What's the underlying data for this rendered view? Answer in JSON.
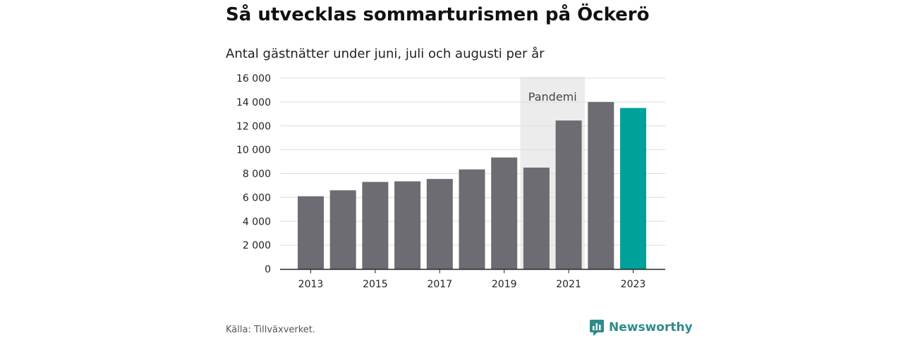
{
  "title": "Så utvecklas sommarturismen på Öckerö",
  "subtitle": "Antal gästnätter under juni, juli och augusti per år",
  "source": "Källa: Tillväxverket.",
  "brand": {
    "name": "Newsworthy",
    "icon": "newsworthy-logo-icon",
    "color": "#2e8b8b"
  },
  "colors": {
    "bar": "#6d6c73",
    "highlight": "#00a19a",
    "annotation_band": "#ececec"
  },
  "chart_data": {
    "type": "bar",
    "categories": [
      "2013",
      "2014",
      "2015",
      "2016",
      "2017",
      "2018",
      "2019",
      "2020",
      "2021",
      "2022",
      "2023"
    ],
    "values": [
      6100,
      6600,
      7300,
      7350,
      7550,
      8350,
      9350,
      8500,
      12450,
      14000,
      13500
    ],
    "highlight_category": "2023",
    "x_tick_labels": [
      "2013",
      "2015",
      "2017",
      "2019",
      "2021",
      "2023"
    ],
    "y_ticks": [
      0,
      2000,
      4000,
      6000,
      8000,
      10000,
      12000,
      14000,
      16000
    ],
    "y_tick_labels": [
      "0",
      "2 000",
      "4 000",
      "6 000",
      "8 000",
      "10 000",
      "12 000",
      "14 000",
      "16 000"
    ],
    "ylim": [
      0,
      16000
    ],
    "grid": true,
    "annotation": {
      "label": "Pandemi",
      "from_category": "2020",
      "to_category": "2021"
    }
  }
}
